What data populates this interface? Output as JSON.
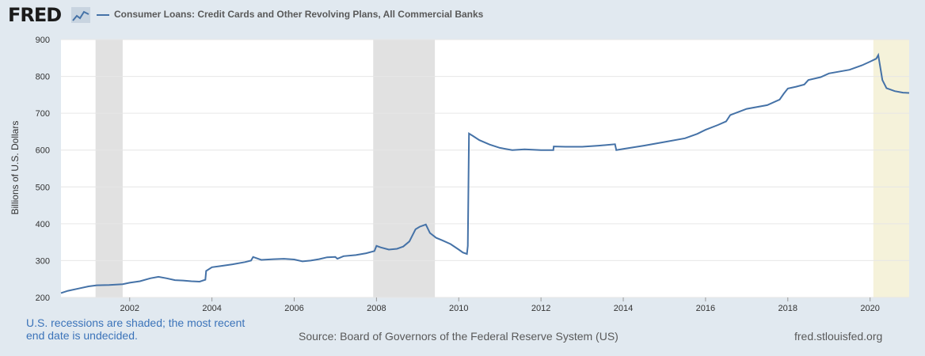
{
  "header": {
    "logo_text": "FRED",
    "logo_icon": "line-chart-icon",
    "series_title": "Consumer Loans: Credit Cards and Other Revolving Plans, All Commercial Banks"
  },
  "footer": {
    "recession_note": "U.S. recessions are shaded; the most recent end date is undecided.",
    "source": "Source: Board of Governors of the Federal Reserve System (US)",
    "site": "fred.stlouisfed.org"
  },
  "colors": {
    "background": "#e1e9f0",
    "plot_background": "#ffffff",
    "series": "#4572a7",
    "recession": "#e1e1e1",
    "recession_undecided": "#f5f2da",
    "gridline": "#e6e6e6"
  },
  "chart_data": {
    "type": "line",
    "title": "Consumer Loans: Credit Cards and Other Revolving Plans, All Commercial Banks",
    "xlabel": "",
    "ylabel": "Billions of U.S. Dollars",
    "xlim": [
      2000.33,
      2020.95
    ],
    "ylim": [
      200,
      900
    ],
    "yticks": [
      200,
      300,
      400,
      500,
      600,
      700,
      800,
      900
    ],
    "xticks": [
      2002,
      2004,
      2006,
      2008,
      2010,
      2012,
      2014,
      2016,
      2018,
      2020
    ],
    "grid": true,
    "legend_position": "top-left",
    "recessions": [
      {
        "start": 2001.17,
        "end": 2001.83,
        "undecided": false
      },
      {
        "start": 2007.92,
        "end": 2009.42,
        "undecided": false
      },
      {
        "start": 2020.08,
        "end": 2020.95,
        "undecided": true
      }
    ],
    "series": [
      {
        "name": "Consumer Loans: Credit Cards and Other Revolving Plans, All Commercial Banks",
        "x": [
          2000.33,
          2000.5,
          2000.75,
          2001.0,
          2001.2,
          2001.5,
          2001.83,
          2002.0,
          2002.25,
          2002.5,
          2002.7,
          2002.9,
          2003.1,
          2003.3,
          2003.5,
          2003.7,
          2003.84,
          2003.86,
          2004.0,
          2004.2,
          2004.5,
          2004.8,
          2004.95,
          2005.0,
          2005.2,
          2005.5,
          2005.75,
          2006.0,
          2006.2,
          2006.4,
          2006.6,
          2006.8,
          2007.0,
          2007.05,
          2007.2,
          2007.5,
          2007.75,
          2007.95,
          2008.0,
          2008.1,
          2008.3,
          2008.5,
          2008.65,
          2008.8,
          2008.95,
          2009.05,
          2009.2,
          2009.3,
          2009.45,
          2009.6,
          2009.8,
          2010.0,
          2010.1,
          2010.2,
          2010.22,
          2010.25,
          2010.35,
          2010.5,
          2010.75,
          2011.0,
          2011.3,
          2011.6,
          2012.0,
          2012.3,
          2012.31,
          2012.6,
          2013.0,
          2013.4,
          2013.8,
          2013.83,
          2014.0,
          2014.5,
          2015.0,
          2015.5,
          2015.8,
          2016.0,
          2016.3,
          2016.5,
          2016.6,
          2017.0,
          2017.5,
          2017.8,
          2017.9,
          2018.0,
          2018.2,
          2018.4,
          2018.5,
          2018.8,
          2019.0,
          2019.5,
          2019.8,
          2020.0,
          2020.15,
          2020.2,
          2020.3,
          2020.4,
          2020.6,
          2020.8,
          2020.95
        ],
        "y": [
          212,
          218,
          224,
          230,
          233,
          234,
          236,
          240,
          244,
          252,
          256,
          252,
          247,
          246,
          244,
          243,
          248,
          272,
          282,
          285,
          290,
          296,
          300,
          310,
          302,
          304,
          305,
          303,
          298,
          300,
          304,
          309,
          310,
          305,
          312,
          315,
          320,
          326,
          340,
          336,
          330,
          332,
          338,
          352,
          385,
          392,
          398,
          375,
          362,
          355,
          345,
          330,
          322,
          318,
          340,
          645,
          638,
          627,
          615,
          606,
          600,
          602,
          600,
          600,
          610,
          609,
          609,
          612,
          616,
          600,
          603,
          612,
          622,
          632,
          644,
          655,
          668,
          678,
          695,
          712,
          722,
          737,
          753,
          767,
          772,
          778,
          790,
          798,
          808,
          818,
          830,
          840,
          848,
          858,
          790,
          768,
          760,
          756,
          755
        ]
      }
    ]
  }
}
